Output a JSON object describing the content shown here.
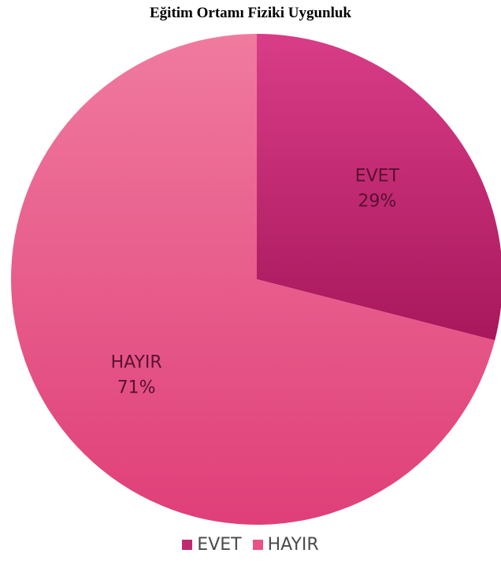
{
  "chart_data": {
    "type": "pie",
    "title": "Eğitim Ortamı Fiziki Uygunluk",
    "slices": [
      {
        "label": "EVET",
        "value": 29,
        "value_label": "29%",
        "color": "#c12a72"
      },
      {
        "label": "HAYIR",
        "value": 71,
        "value_label": "71%",
        "color": "#ea5186"
      }
    ],
    "legend_position": "bottom",
    "start_angle": "12 o'clock, clockwise"
  }
}
